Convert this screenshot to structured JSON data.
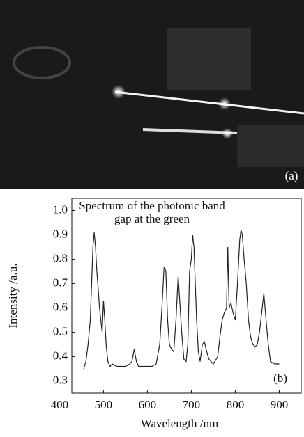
{
  "photo": {
    "label": "(a)"
  },
  "chart_data": {
    "type": "line",
    "title": "Spectrum of the photonic band gap at the green",
    "panel_label": "(b)",
    "x_label": "Wavelength /nm",
    "y_label": "Intensity /a.u.",
    "color": "#222222",
    "x": [
      455,
      460,
      465,
      470,
      473,
      476,
      479,
      482,
      485,
      488,
      491,
      494,
      497,
      500,
      503,
      506,
      510,
      515,
      520,
      530,
      540,
      550,
      560,
      565,
      570,
      575,
      580,
      590,
      600,
      610,
      620,
      628,
      633,
      638,
      642,
      646,
      650,
      655,
      660,
      665,
      670,
      674,
      678,
      683,
      688,
      692,
      696,
      700,
      703,
      706,
      709,
      712,
      716,
      720,
      725,
      730,
      735,
      740,
      750,
      760,
      765,
      770,
      775,
      780,
      783,
      786,
      790,
      795,
      800,
      805,
      810,
      813,
      816,
      820,
      825,
      830,
      835,
      840,
      845,
      850,
      855,
      860,
      865,
      870,
      875,
      880,
      890,
      900
    ],
    "values": [
      0.35,
      0.38,
      0.45,
      0.55,
      0.7,
      0.85,
      0.91,
      0.85,
      0.75,
      0.68,
      0.6,
      0.55,
      0.5,
      0.63,
      0.55,
      0.45,
      0.38,
      0.36,
      0.37,
      0.36,
      0.36,
      0.36,
      0.37,
      0.38,
      0.43,
      0.38,
      0.36,
      0.36,
      0.36,
      0.36,
      0.37,
      0.45,
      0.6,
      0.77,
      0.75,
      0.55,
      0.45,
      0.43,
      0.42,
      0.55,
      0.73,
      0.62,
      0.5,
      0.39,
      0.38,
      0.45,
      0.75,
      0.8,
      0.9,
      0.85,
      0.7,
      0.55,
      0.42,
      0.38,
      0.45,
      0.46,
      0.42,
      0.39,
      0.37,
      0.4,
      0.48,
      0.55,
      0.58,
      0.6,
      0.85,
      0.6,
      0.62,
      0.58,
      0.55,
      0.7,
      0.88,
      0.92,
      0.9,
      0.8,
      0.7,
      0.55,
      0.48,
      0.45,
      0.44,
      0.45,
      0.5,
      0.58,
      0.66,
      0.55,
      0.45,
      0.38,
      0.37,
      0.37
    ],
    "xlim": [
      428,
      950
    ],
    "xticks": [
      400,
      500,
      600,
      700,
      800,
      900
    ],
    "ylim": [
      0.25,
      1.05
    ],
    "yticks": [
      0.3,
      0.4,
      0.5,
      0.6,
      0.7,
      0.8,
      0.9,
      {
        "value": 1,
        "label": "1.0"
      }
    ]
  }
}
